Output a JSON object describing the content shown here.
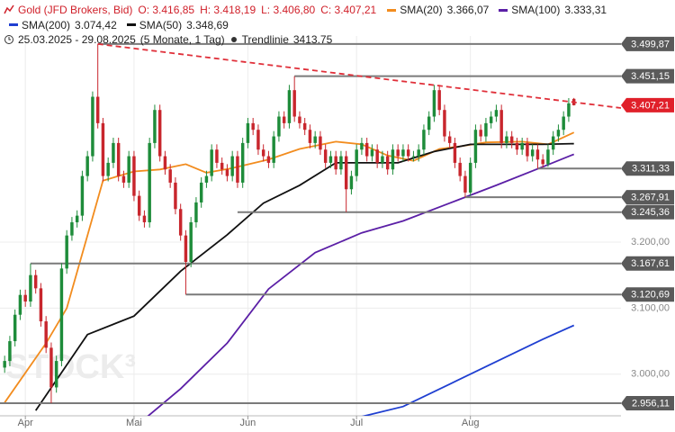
{
  "chart_data": {
    "type": "candlestick",
    "title": "Gold (JFD Brokers, Bid)",
    "quote": [
      "O: 3.416,85",
      "H: 3.418,19",
      "L: 3.406,80",
      "C: 3.407,21"
    ],
    "period": "25.03.2025 - 29.08.2025",
    "span": "(5 Monate, 1 Tag)",
    "watermark": "STOCK³",
    "up_color": "#1e8c3a",
    "down_color": "#c8262d",
    "open": [
      3010,
      3020,
      3050,
      3090,
      3120,
      3110,
      3150,
      3130,
      3080,
      3040,
      2980,
      3020,
      3160,
      3210,
      3230,
      3240,
      3300,
      3330,
      3420,
      3380,
      3300,
      3320,
      3350,
      3300,
      3290,
      3330,
      3270,
      3240,
      3230,
      3350,
      3400,
      3330,
      3310,
      3290,
      3250,
      3210,
      3170,
      3230,
      3260,
      3290,
      3300,
      3340,
      3320,
      3310,
      3300,
      3330,
      3290,
      3350,
      3380,
      3370,
      3340,
      3330,
      3320,
      3360,
      3390,
      3380,
      3430,
      3390,
      3380,
      3370,
      3350,
      3360,
      3340,
      3320,
      3330,
      3310,
      3330,
      3280,
      3300,
      3340,
      3350,
      3330,
      3340,
      3320,
      3330,
      3310,
      3340,
      3330,
      3340,
      3330,
      3330,
      3340,
      3370,
      3390,
      3430,
      3400,
      3360,
      3350,
      3320,
      3300,
      3275,
      3320,
      3370,
      3360,
      3380,
      3390,
      3400,
      3350,
      3360,
      3350,
      3340,
      3350,
      3330,
      3340,
      3325,
      3318,
      3340,
      3360,
      3370,
      3390,
      3416.85
    ],
    "high": [
      3028,
      3058,
      3098,
      3128,
      3128,
      3167.61,
      3158,
      3138,
      3088,
      3048,
      3028,
      3168,
      3218,
      3238,
      3248,
      3308,
      3338,
      3428,
      3499.87,
      3388,
      3328,
      3358,
      3358,
      3308,
      3338,
      3338,
      3278,
      3248,
      3358,
      3408,
      3408,
      3338,
      3318,
      3298,
      3258,
      3218,
      3238,
      3268,
      3298,
      3308,
      3348,
      3348,
      3328,
      3318,
      3338,
      3338,
      3358,
      3388,
      3388,
      3378,
      3348,
      3338,
      3368,
      3398,
      3398,
      3438,
      3451.15,
      3398,
      3388,
      3378,
      3368,
      3368,
      3348,
      3338,
      3338,
      3338,
      3338,
      3308,
      3348,
      3358,
      3358,
      3348,
      3348,
      3338,
      3338,
      3348,
      3348,
      3348,
      3348,
      3338,
      3348,
      3378,
      3398,
      3438,
      3438,
      3408,
      3368,
      3358,
      3328,
      3308,
      3328,
      3378,
      3378,
      3388,
      3398,
      3408,
      3408,
      3368,
      3368,
      3358,
      3358,
      3358,
      3348,
      3348,
      3333,
      3348,
      3368,
      3378,
      3398,
      3418,
      3418.19
    ],
    "low": [
      3002,
      3012,
      3042,
      3082,
      3102,
      3102,
      3122,
      3072,
      3032,
      2956.11,
      2972,
      3012,
      3152,
      3202,
      3222,
      3232,
      3292,
      3322,
      3372,
      3292,
      3292,
      3312,
      3292,
      3282,
      3282,
      3262,
      3232,
      3222,
      3222,
      3342,
      3322,
      3302,
      3282,
      3242,
      3202,
      3120.69,
      3162,
      3222,
      3252,
      3282,
      3292,
      3312,
      3302,
      3292,
      3292,
      3282,
      3282,
      3342,
      3362,
      3332,
      3322,
      3312,
      3312,
      3352,
      3372,
      3372,
      3382,
      3372,
      3362,
      3342,
      3342,
      3332,
      3312,
      3312,
      3302,
      3302,
      3245.36,
      3272,
      3292,
      3332,
      3322,
      3322,
      3312,
      3312,
      3302,
      3302,
      3322,
      3322,
      3322,
      3322,
      3322,
      3332,
      3362,
      3382,
      3392,
      3352,
      3342,
      3312,
      3292,
      3267.91,
      3270,
      3312,
      3352,
      3352,
      3372,
      3382,
      3342,
      3342,
      3342,
      3332,
      3332,
      3322,
      3322,
      3311.33,
      3313,
      3314,
      3332,
      3352,
      3362,
      3382,
      3406.8
    ],
    "close": [
      3020,
      3050,
      3090,
      3120,
      3110,
      3150,
      3130,
      3080,
      3040,
      2980,
      3020,
      3160,
      3210,
      3230,
      3240,
      3300,
      3330,
      3420,
      3380,
      3300,
      3320,
      3350,
      3300,
      3290,
      3330,
      3270,
      3240,
      3230,
      3350,
      3400,
      3330,
      3310,
      3290,
      3250,
      3210,
      3170,
      3230,
      3260,
      3290,
      3300,
      3340,
      3320,
      3310,
      3300,
      3330,
      3290,
      3350,
      3380,
      3370,
      3340,
      3330,
      3320,
      3360,
      3390,
      3380,
      3430,
      3390,
      3380,
      3370,
      3350,
      3360,
      3340,
      3320,
      3330,
      3310,
      3330,
      3280,
      3300,
      3340,
      3350,
      3330,
      3340,
      3320,
      3330,
      3310,
      3340,
      3330,
      3340,
      3330,
      3330,
      3340,
      3370,
      3390,
      3430,
      3400,
      3360,
      3350,
      3320,
      3300,
      3275,
      3320,
      3370,
      3360,
      3380,
      3390,
      3400,
      3350,
      3360,
      3350,
      3340,
      3350,
      3330,
      3340,
      3325,
      3318,
      3340,
      3360,
      3370,
      3390,
      3410,
      3407.21
    ],
    "series": [
      {
        "name": "SMA(20)",
        "value_label": "3.366,07",
        "color": "#f28c1e",
        "x": [
          0,
          8,
          12,
          16,
          19,
          25,
          30,
          35,
          39,
          44,
          51,
          57,
          64,
          69,
          74,
          79,
          84,
          88,
          93,
          100,
          105,
          110
        ],
        "values": [
          2957,
          3047,
          3100,
          3210,
          3293,
          3307,
          3310,
          3318,
          3305,
          3312,
          3325,
          3341,
          3352,
          3348,
          3331,
          3323,
          3341,
          3345,
          3351,
          3352,
          3348,
          3366
        ]
      },
      {
        "name": "SMA(100)",
        "value_label": "3.333,31",
        "color": "#5b1fa6",
        "x": [
          27,
          34,
          43,
          51,
          60,
          69,
          77,
          86,
          95,
          104,
          110
        ],
        "values": [
          2932,
          2978,
          3047,
          3129,
          3184,
          3214,
          3232,
          3259,
          3286,
          3314,
          3333
        ]
      },
      {
        "name": "SMA(200)",
        "value_label": "3.074,42",
        "color": "#1f3fd1",
        "x": [
          66,
          77,
          86,
          95,
          104,
          110
        ],
        "values": [
          2930,
          2951,
          2985,
          3019,
          3053,
          3074
        ]
      },
      {
        "name": "SMA(50)",
        "value_label": "3.348,69",
        "color": "#111111",
        "x": [
          6,
          16,
          25,
          34,
          43,
          50,
          57,
          64,
          69,
          76,
          83,
          90,
          97,
          104,
          110
        ],
        "values": [
          2945,
          3060,
          3088,
          3156,
          3211,
          3259,
          3286,
          3320,
          3320,
          3320,
          3337,
          3348,
          3348,
          3348,
          3349
        ]
      }
    ],
    "trendline": {
      "name": "Trendlinie",
      "value_label": "3413.75",
      "color": "#e0303a",
      "x": [
        18,
        119.1
      ],
      "values": [
        3499.87,
        3403
      ]
    },
    "last_price": {
      "value": 3407.21,
      "label": "3.407,21",
      "color": "#e0202a"
    },
    "levels": [
      {
        "value": 3499.87,
        "label": "3.499,87",
        "from": 18
      },
      {
        "value": 3451.15,
        "label": "3.451,15",
        "from": 56
      },
      {
        "value": 3311.33,
        "label": "3.311,33",
        "from": 103
      },
      {
        "value": 3267.91,
        "label": "3.267,91",
        "from": 89
      },
      {
        "value": 3245.36,
        "label": "3.245,36",
        "from": 45
      },
      {
        "value": 3167.61,
        "label": "3.167,61",
        "from": 5
      },
      {
        "value": 3120.69,
        "label": "3.120,69",
        "from": 35
      },
      {
        "value": 2956.11,
        "label": "2.956,11",
        "from": -0.9
      }
    ],
    "xlim": [
      -0.9,
      119.1
    ],
    "ylim": [
      2937,
      3512
    ],
    "xticks": [
      {
        "value": 4,
        "label": "Apr"
      },
      {
        "value": 25,
        "label": "Mai"
      },
      {
        "value": 47,
        "label": "Jun"
      },
      {
        "value": 68,
        "label": "Jul"
      },
      {
        "value": 90,
        "label": "Aug"
      }
    ],
    "yticks": [
      {
        "value": 3000,
        "label": "3.000,00"
      },
      {
        "value": 3100,
        "label": "3.100,00"
      },
      {
        "value": 3200,
        "label": "3.200,00"
      }
    ],
    "grid": true
  }
}
